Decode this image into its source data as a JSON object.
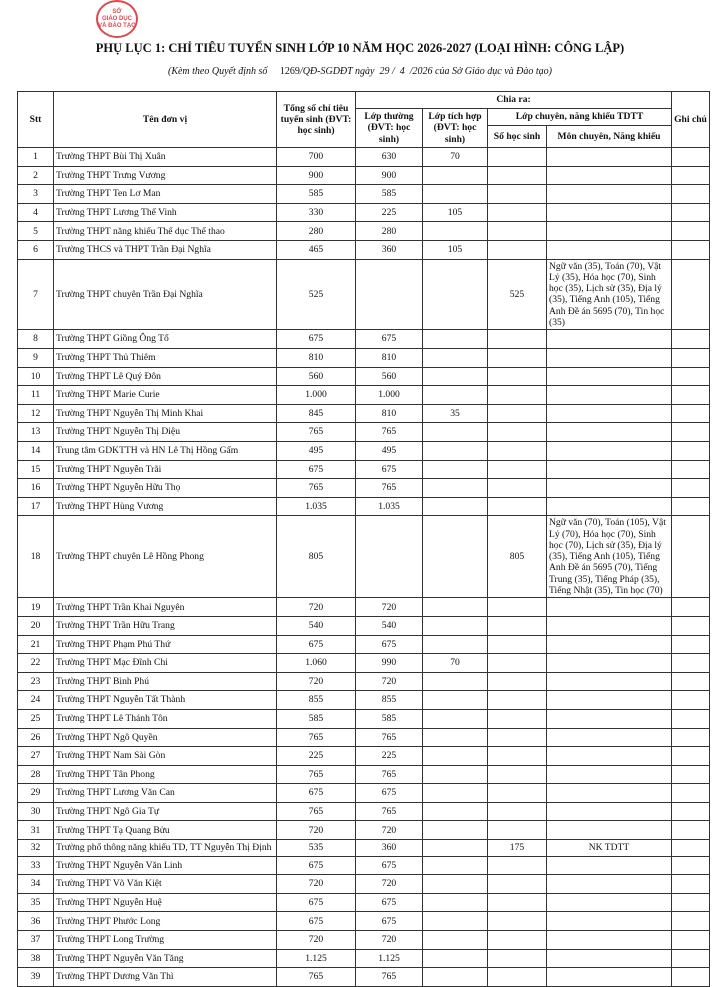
{
  "stamp": {
    "text_top": "SỞ",
    "text_mid": "GIÁO DỤC",
    "text_bot": "VÀ ĐÀO TẠO",
    "color": "#d8282f"
  },
  "title": "PHỤ LỤC 1: CHỈ TIÊU TUYỂN SINH LỚP 10 NĂM HỌC 2026-2027 (LOẠI HÌNH: CÔNG LẬP)",
  "subtitle": {
    "prefix": "(Kèm theo Quyết định số",
    "number": "1269",
    "mid": "/QĐ-SGDĐT ngày",
    "day": "29",
    "month": "4",
    "suffix": "/2026 của Sở Giáo dục và Đào tạo)"
  },
  "headers": {
    "stt": "Stt",
    "name": "Tên đơn vị",
    "total": "Tổng số chỉ tiêu tuyển sinh (ĐVT: học sinh)",
    "chia_ra": "Chia ra:",
    "regular": "Lớp thường (ĐVT: học sinh)",
    "integrated": "Lớp tích hợp (ĐVT: học sinh)",
    "specialized": "Lớp chuyên, năng khiếu TDTT",
    "spec_count": "Số học sinh",
    "spec_subjects": "Môn chuyên, Năng khiếu",
    "note": "Ghi chú"
  },
  "rows": [
    {
      "stt": "1",
      "name": "Trường THPT Bùi Thị Xuân",
      "total": "700",
      "regular": "630",
      "integrated": "70",
      "spec_count": "",
      "spec_subjects": ""
    },
    {
      "stt": "2",
      "name": "Trường THPT Trưng Vương",
      "total": "900",
      "regular": "900",
      "integrated": "",
      "spec_count": "",
      "spec_subjects": ""
    },
    {
      "stt": "3",
      "name": "Trường THPT Ten Lơ Man",
      "total": "585",
      "regular": "585",
      "integrated": "",
      "spec_count": "",
      "spec_subjects": ""
    },
    {
      "stt": "4",
      "name": "Trường THPT Lương Thế Vinh",
      "total": "330",
      "regular": "225",
      "integrated": "105",
      "spec_count": "",
      "spec_subjects": ""
    },
    {
      "stt": "5",
      "name": "Trường THPT năng khiếu Thể dục Thể thao",
      "total": "280",
      "regular": "280",
      "integrated": "",
      "spec_count": "",
      "spec_subjects": ""
    },
    {
      "stt": "6",
      "name": "Trường THCS và THPT Trần Đại Nghĩa",
      "total": "465",
      "regular": "360",
      "integrated": "105",
      "spec_count": "",
      "spec_subjects": ""
    },
    {
      "stt": "7",
      "name": "Trường THPT chuyên Trần Đại Nghĩa",
      "total": "525",
      "regular": "",
      "integrated": "",
      "spec_count": "525",
      "spec_subjects": "Ngữ văn (35), Toán (70), Vật Lý (35), Hóa học (70), Sinh học (35), Lịch sử (35), Địa lý (35), Tiếng Anh (105), Tiếng Anh Đề án 5695 (70), Tin học (35)"
    },
    {
      "stt": "8",
      "name": "Trường THPT Giồng Ông Tố",
      "total": "675",
      "regular": "675",
      "integrated": "",
      "spec_count": "",
      "spec_subjects": ""
    },
    {
      "stt": "9",
      "name": "Trường THPT Thủ Thiêm",
      "total": "810",
      "regular": "810",
      "integrated": "",
      "spec_count": "",
      "spec_subjects": ""
    },
    {
      "stt": "10",
      "name": "Trường THPT Lê Quý Đôn",
      "total": "560",
      "regular": "560",
      "integrated": "",
      "spec_count": "",
      "spec_subjects": ""
    },
    {
      "stt": "11",
      "name": "Trường THPT Marie Curie",
      "total": "1.000",
      "regular": "1.000",
      "integrated": "",
      "spec_count": "",
      "spec_subjects": ""
    },
    {
      "stt": "12",
      "name": "Trường THPT Nguyễn Thị Minh Khai",
      "total": "845",
      "regular": "810",
      "integrated": "35",
      "spec_count": "",
      "spec_subjects": ""
    },
    {
      "stt": "13",
      "name": "Trường THPT Nguyễn Thị Diệu",
      "total": "765",
      "regular": "765",
      "integrated": "",
      "spec_count": "",
      "spec_subjects": ""
    },
    {
      "stt": "14",
      "name": "Trung tâm GDKTTH và HN Lê Thị Hồng Gấm",
      "total": "495",
      "regular": "495",
      "integrated": "",
      "spec_count": "",
      "spec_subjects": ""
    },
    {
      "stt": "15",
      "name": "Trường THPT Nguyễn Trãi",
      "total": "675",
      "regular": "675",
      "integrated": "",
      "spec_count": "",
      "spec_subjects": ""
    },
    {
      "stt": "16",
      "name": "Trường THPT Nguyễn Hữu Thọ",
      "total": "765",
      "regular": "765",
      "integrated": "",
      "spec_count": "",
      "spec_subjects": ""
    },
    {
      "stt": "17",
      "name": "Trường THPT Hùng Vương",
      "total": "1.035",
      "regular": "1.035",
      "integrated": "",
      "spec_count": "",
      "spec_subjects": ""
    },
    {
      "stt": "18",
      "name": "Trường THPT chuyên Lê Hồng Phong",
      "total": "805",
      "regular": "",
      "integrated": "",
      "spec_count": "805",
      "spec_subjects": "Ngữ văn (70), Toán (105), Vật Lý (70), Hóa học (70), Sinh học (70), Lịch sử (35), Địa lý (35), Tiếng Anh (105), Tiếng Anh Đề án 5695 (70), Tiếng Trung (35), Tiếng Pháp (35), Tiếng Nhật (35), Tin học (70)"
    },
    {
      "stt": "19",
      "name": "Trường THPT Trần Khai Nguyên",
      "total": "720",
      "regular": "720",
      "integrated": "",
      "spec_count": "",
      "spec_subjects": ""
    },
    {
      "stt": "20",
      "name": "Trường THPT Trần Hữu Trang",
      "total": "540",
      "regular": "540",
      "integrated": "",
      "spec_count": "",
      "spec_subjects": ""
    },
    {
      "stt": "21",
      "name": "Trường THPT Phạm Phú Thứ",
      "total": "675",
      "regular": "675",
      "integrated": "",
      "spec_count": "",
      "spec_subjects": ""
    },
    {
      "stt": "22",
      "name": "Trường THPT Mạc Đĩnh Chi",
      "total": "1.060",
      "regular": "990",
      "integrated": "70",
      "spec_count": "",
      "spec_subjects": ""
    },
    {
      "stt": "23",
      "name": "Trường THPT Bình Phú",
      "total": "720",
      "regular": "720",
      "integrated": "",
      "spec_count": "",
      "spec_subjects": ""
    },
    {
      "stt": "24",
      "name": "Trường THPT Nguyễn Tất Thành",
      "total": "855",
      "regular": "855",
      "integrated": "",
      "spec_count": "",
      "spec_subjects": ""
    },
    {
      "stt": "25",
      "name": "Trường THPT Lê Thánh Tôn",
      "total": "585",
      "regular": "585",
      "integrated": "",
      "spec_count": "",
      "spec_subjects": ""
    },
    {
      "stt": "26",
      "name": "Trường THPT Ngô Quyền",
      "total": "765",
      "regular": "765",
      "integrated": "",
      "spec_count": "",
      "spec_subjects": ""
    },
    {
      "stt": "27",
      "name": "Trường THPT Nam Sài Gòn",
      "total": "225",
      "regular": "225",
      "integrated": "",
      "spec_count": "",
      "spec_subjects": ""
    },
    {
      "stt": "28",
      "name": "Trường THPT Tân Phong",
      "total": "765",
      "regular": "765",
      "integrated": "",
      "spec_count": "",
      "spec_subjects": ""
    },
    {
      "stt": "29",
      "name": "Trường THPT Lương Văn Can",
      "total": "675",
      "regular": "675",
      "integrated": "",
      "spec_count": "",
      "spec_subjects": ""
    },
    {
      "stt": "30",
      "name": "Trường THPT Ngô Gia Tự",
      "total": "765",
      "regular": "765",
      "integrated": "",
      "spec_count": "",
      "spec_subjects": ""
    },
    {
      "stt": "31",
      "name": "Trường THPT Tạ Quang Bửu",
      "total": "720",
      "regular": "720",
      "integrated": "",
      "spec_count": "",
      "spec_subjects": ""
    },
    {
      "stt": "32",
      "name": "Trường phổ thông năng khiếu TD, TT Nguyễn Thị Định",
      "total": "535",
      "regular": "360",
      "integrated": "",
      "spec_count": "175",
      "spec_subjects": "NK TDTT"
    },
    {
      "stt": "33",
      "name": "Trường THPT Nguyễn Văn Linh",
      "total": "675",
      "regular": "675",
      "integrated": "",
      "spec_count": "",
      "spec_subjects": ""
    },
    {
      "stt": "34",
      "name": "Trường THPT Võ Văn Kiệt",
      "total": "720",
      "regular": "720",
      "integrated": "",
      "spec_count": "",
      "spec_subjects": ""
    },
    {
      "stt": "35",
      "name": "Trường THPT Nguyễn Huệ",
      "total": "675",
      "regular": "675",
      "integrated": "",
      "spec_count": "",
      "spec_subjects": ""
    },
    {
      "stt": "36",
      "name": "Trường THPT Phước Long",
      "total": "675",
      "regular": "675",
      "integrated": "",
      "spec_count": "",
      "spec_subjects": ""
    },
    {
      "stt": "37",
      "name": "Trường THPT Long Trường",
      "total": "720",
      "regular": "720",
      "integrated": "",
      "spec_count": "",
      "spec_subjects": ""
    },
    {
      "stt": "38",
      "name": "Trường THPT Nguyễn Văn Tăng",
      "total": "1.125",
      "regular": "1.125",
      "integrated": "",
      "spec_count": "",
      "spec_subjects": ""
    },
    {
      "stt": "39",
      "name": "Trường THPT Dương Văn Thì",
      "total": "765",
      "regular": "765",
      "integrated": "",
      "spec_count": "",
      "spec_subjects": ""
    }
  ]
}
